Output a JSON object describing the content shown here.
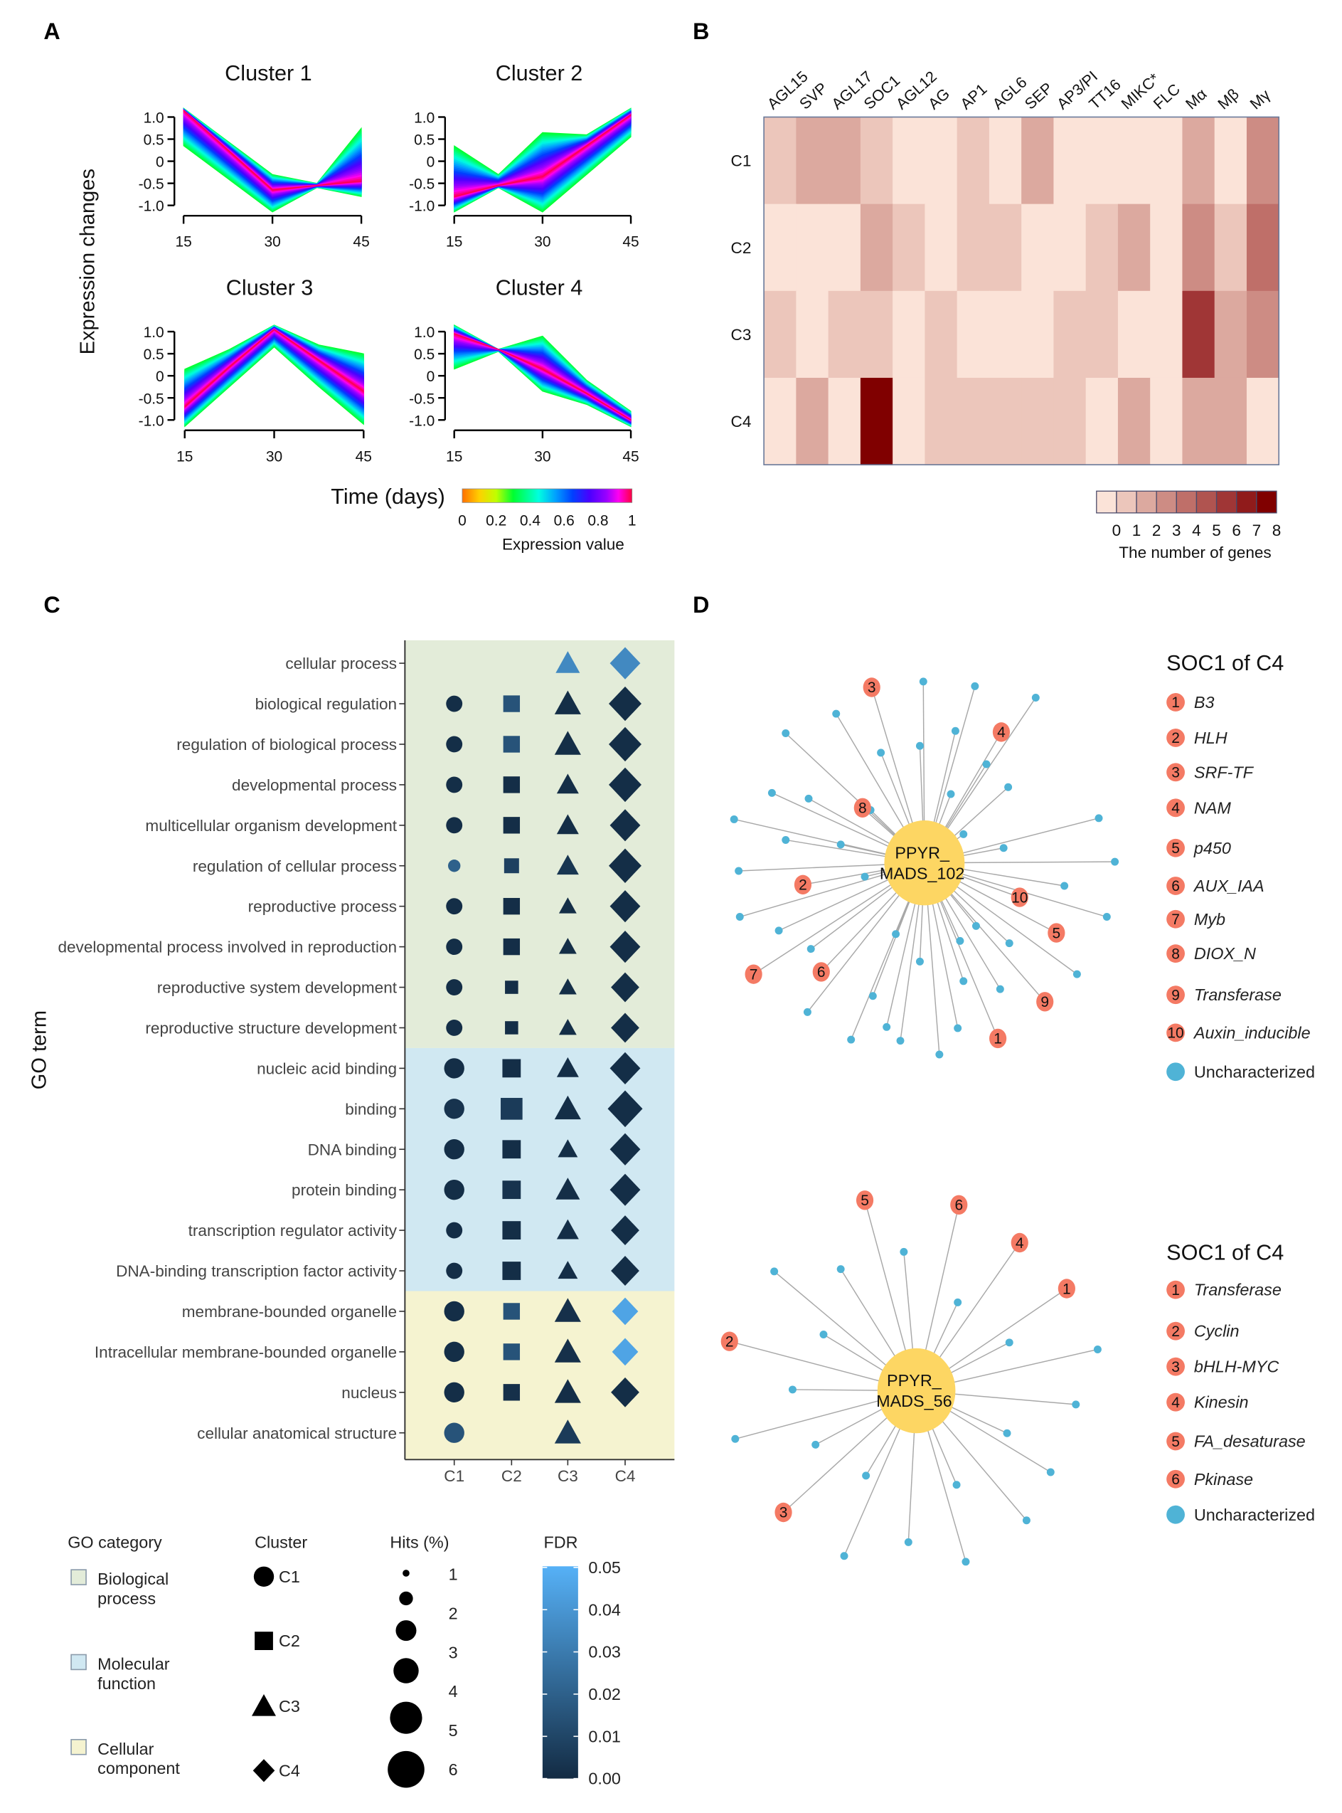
{
  "panels": {
    "a": "A",
    "b": "B",
    "c": "C",
    "d": "D"
  },
  "chart_data": [
    {
      "type": "line",
      "ylabel": "Expression changes",
      "xlabel": "Time (days)",
      "x": [
        15,
        22.5,
        30,
        37.5,
        45
      ],
      "xticks": [
        "15",
        "30",
        "45"
      ],
      "yticks": [
        "1.0",
        "0.5",
        "0",
        "-0.5",
        "-1.0"
      ],
      "ylim": [
        -1.0,
        1.0
      ],
      "clusters": [
        {
          "title": "Cluster 1",
          "core": [
            1.15,
            0.25,
            -0.65,
            -0.55,
            -0.45
          ],
          "upper": [
            1.2,
            0.45,
            -0.3,
            -0.5,
            0.75
          ],
          "lower": [
            0.35,
            -0.4,
            -1.15,
            -0.6,
            -0.8
          ]
        },
        {
          "title": "Cluster 2",
          "core": [
            -0.8,
            -0.55,
            -0.35,
            0.35,
            1.05
          ],
          "upper": [
            0.35,
            -0.3,
            0.65,
            0.6,
            1.2
          ],
          "lower": [
            -1.15,
            -0.6,
            -1.15,
            -0.3,
            0.55
          ]
        },
        {
          "title": "Cluster 3",
          "core": [
            -0.7,
            0.2,
            1.05,
            0.35,
            -0.35
          ],
          "upper": [
            0.15,
            0.6,
            1.15,
            0.7,
            0.5
          ],
          "lower": [
            -1.15,
            -0.25,
            0.65,
            -0.25,
            -1.1
          ]
        },
        {
          "title": "Cluster 4",
          "core": [
            0.95,
            0.6,
            0.15,
            -0.4,
            -1.0
          ],
          "upper": [
            1.15,
            0.6,
            0.9,
            -0.1,
            -0.8
          ],
          "lower": [
            0.15,
            0.55,
            -0.35,
            -0.65,
            -1.15
          ]
        }
      ],
      "colorbar": {
        "title": "Expression value",
        "ticks": [
          "0",
          "0.2",
          "0.4",
          "0.6",
          "0.8",
          "1"
        ]
      }
    },
    {
      "type": "heatmap",
      "columns": [
        "AGL15",
        "SVP",
        "AGL17",
        "SOC1",
        "AGL12",
        "AG",
        "AP1",
        "AGL6",
        "SEP",
        "AP3/PI",
        "TT16",
        "MIKC*",
        "FLC",
        "Mα",
        "Mβ",
        "Mγ"
      ],
      "rows": [
        "C1",
        "C2",
        "C3",
        "C4"
      ],
      "values": [
        [
          1,
          2,
          2,
          1,
          0,
          0,
          1,
          0,
          2,
          0,
          0,
          0,
          0,
          2,
          0,
          3
        ],
        [
          0,
          0,
          0,
          2,
          1,
          0,
          1,
          1,
          0,
          0,
          1,
          2,
          0,
          3,
          1,
          4
        ],
        [
          1,
          0,
          1,
          1,
          0,
          1,
          0,
          0,
          0,
          1,
          1,
          0,
          0,
          6,
          2,
          3
        ],
        [
          0,
          2,
          0,
          8,
          0,
          1,
          1,
          1,
          1,
          1,
          0,
          2,
          0,
          2,
          2,
          0
        ]
      ],
      "legend_title": "The number of genes",
      "legend_ticks": [
        "0",
        "1",
        "2",
        "3",
        "4",
        "5",
        "6",
        "7",
        "8"
      ],
      "colors": [
        "#fbe3d8",
        "#ecc6bb",
        "#dca99f",
        "#cd8c84",
        "#bf6f69",
        "#b05450",
        "#a03636",
        "#901b1b",
        "#800000"
      ]
    },
    {
      "type": "scatter",
      "ylabel": "GO term",
      "clusters": [
        "C1",
        "C2",
        "C3",
        "C4"
      ],
      "category_colors": {
        "BP": "#e3ecd9",
        "MF": "#d0e8f2",
        "CC": "#f5f3d0"
      },
      "fdr_range": [
        0,
        0.05
      ],
      "fdr_colors": [
        "#132b43",
        "#56b1f7"
      ],
      "terms": [
        {
          "label": "cellular process",
          "cat": "BP",
          "points": [
            null,
            null,
            {
              "hits": 4.5,
              "fdr": 0.035
            },
            {
              "hits": 5.5,
              "fdr": 0.035
            }
          ]
        },
        {
          "label": "biological regulation",
          "cat": "BP",
          "points": [
            {
              "hits": 3,
              "fdr": 0.001
            },
            {
              "hits": 3.5,
              "fdr": 0.015
            },
            {
              "hits": 5,
              "fdr": 0.001
            },
            {
              "hits": 6,
              "fdr": 0.001
            }
          ]
        },
        {
          "label": "regulation of biological process",
          "cat": "BP",
          "points": [
            {
              "hits": 3,
              "fdr": 0.001
            },
            {
              "hits": 3.5,
              "fdr": 0.015
            },
            {
              "hits": 5,
              "fdr": 0.001
            },
            {
              "hits": 6,
              "fdr": 0.001
            }
          ]
        },
        {
          "label": "developmental process",
          "cat": "BP",
          "points": [
            {
              "hits": 3,
              "fdr": 0.001
            },
            {
              "hits": 3.5,
              "fdr": 0.001
            },
            {
              "hits": 4,
              "fdr": 0.001
            },
            {
              "hits": 6,
              "fdr": 0.001
            }
          ]
        },
        {
          "label": "multicellular organism development",
          "cat": "BP",
          "points": [
            {
              "hits": 3,
              "fdr": 0.001
            },
            {
              "hits": 3.5,
              "fdr": 0.001
            },
            {
              "hits": 4,
              "fdr": 0.001
            },
            {
              "hits": 5.5,
              "fdr": 0.001
            }
          ]
        },
        {
          "label": "regulation of cellular process",
          "cat": "BP",
          "points": [
            {
              "hits": 2,
              "fdr": 0.02
            },
            {
              "hits": 3,
              "fdr": 0.008
            },
            {
              "hits": 4,
              "fdr": 0.004
            },
            {
              "hits": 6,
              "fdr": 0.001
            }
          ]
        },
        {
          "label": "reproductive process",
          "cat": "BP",
          "points": [
            {
              "hits": 3,
              "fdr": 0.001
            },
            {
              "hits": 3.5,
              "fdr": 0.001
            },
            {
              "hits": 3,
              "fdr": 0.001
            },
            {
              "hits": 5.5,
              "fdr": 0.001
            }
          ]
        },
        {
          "label": "developmental process involved in reproduction",
          "cat": "BP",
          "points": [
            {
              "hits": 3,
              "fdr": 0.001
            },
            {
              "hits": 3.5,
              "fdr": 0.001
            },
            {
              "hits": 3,
              "fdr": 0.001
            },
            {
              "hits": 5.5,
              "fdr": 0.001
            }
          ]
        },
        {
          "label": "reproductive system development",
          "cat": "BP",
          "points": [
            {
              "hits": 3,
              "fdr": 0.001
            },
            {
              "hits": 2.5,
              "fdr": 0.001
            },
            {
              "hits": 3,
              "fdr": 0.001
            },
            {
              "hits": 5,
              "fdr": 0.001
            }
          ]
        },
        {
          "label": "reproductive structure development",
          "cat": "BP",
          "points": [
            {
              "hits": 3,
              "fdr": 0.001
            },
            {
              "hits": 2.5,
              "fdr": 0.001
            },
            {
              "hits": 3,
              "fdr": 0.001
            },
            {
              "hits": 5,
              "fdr": 0.001
            }
          ]
        },
        {
          "label": "nucleic acid binding",
          "cat": "MF",
          "points": [
            {
              "hits": 4,
              "fdr": 0.001
            },
            {
              "hits": 4,
              "fdr": 0.001
            },
            {
              "hits": 4,
              "fdr": 0.001
            },
            {
              "hits": 5.5,
              "fdr": 0.001
            }
          ]
        },
        {
          "label": "binding",
          "cat": "MF",
          "points": [
            {
              "hits": 4,
              "fdr": 0.003
            },
            {
              "hits": 5,
              "fdr": 0.006
            },
            {
              "hits": 5,
              "fdr": 0.001
            },
            {
              "hits": 6.5,
              "fdr": 0.001
            }
          ]
        },
        {
          "label": "DNA binding",
          "cat": "MF",
          "points": [
            {
              "hits": 4,
              "fdr": 0.001
            },
            {
              "hits": 4,
              "fdr": 0.001
            },
            {
              "hits": 3.5,
              "fdr": 0.001
            },
            {
              "hits": 5.5,
              "fdr": 0.001
            }
          ]
        },
        {
          "label": "protein binding",
          "cat": "MF",
          "points": [
            {
              "hits": 4,
              "fdr": 0.001
            },
            {
              "hits": 4,
              "fdr": 0.003
            },
            {
              "hits": 4.5,
              "fdr": 0.001
            },
            {
              "hits": 5.5,
              "fdr": 0.001
            }
          ]
        },
        {
          "label": "transcription regulator activity",
          "cat": "MF",
          "points": [
            {
              "hits": 3,
              "fdr": 0.001
            },
            {
              "hits": 4,
              "fdr": 0.001
            },
            {
              "hits": 4,
              "fdr": 0.001
            },
            {
              "hits": 5,
              "fdr": 0.001
            }
          ]
        },
        {
          "label": "DNA-binding transcription factor activity",
          "cat": "MF",
          "points": [
            {
              "hits": 3,
              "fdr": 0.001
            },
            {
              "hits": 4,
              "fdr": 0.001
            },
            {
              "hits": 3.5,
              "fdr": 0.001
            },
            {
              "hits": 5,
              "fdr": 0.001
            }
          ]
        },
        {
          "label": "membrane-bounded organelle",
          "cat": "CC",
          "points": [
            {
              "hits": 4,
              "fdr": 0.001
            },
            {
              "hits": 3.5,
              "fdr": 0.015
            },
            {
              "hits": 5,
              "fdr": 0.002
            },
            {
              "hits": 4.5,
              "fdr": 0.045
            }
          ]
        },
        {
          "label": "Intracellular membrane-bounded organelle",
          "cat": "CC",
          "points": [
            {
              "hits": 4,
              "fdr": 0.001
            },
            {
              "hits": 3.5,
              "fdr": 0.015
            },
            {
              "hits": 5,
              "fdr": 0.002
            },
            {
              "hits": 4.5,
              "fdr": 0.045
            }
          ]
        },
        {
          "label": "nucleus",
          "cat": "CC",
          "points": [
            {
              "hits": 4,
              "fdr": 0.001
            },
            {
              "hits": 3.5,
              "fdr": 0.002
            },
            {
              "hits": 5,
              "fdr": 0.001
            },
            {
              "hits": 5,
              "fdr": 0.001
            }
          ]
        },
        {
          "label": "cellular anatomical structure",
          "cat": "CC",
          "points": [
            {
              "hits": 4,
              "fdr": 0.015
            },
            null,
            {
              "hits": 5,
              "fdr": 0.006
            },
            null
          ]
        }
      ],
      "legend": {
        "category_title": "GO category",
        "categories": [
          [
            "Biological",
            "process"
          ],
          [
            "Molecular",
            "function"
          ],
          [
            "Cellular",
            "component"
          ]
        ],
        "cluster_title": "Cluster",
        "hits_title": "Hits (%)",
        "hits_ticks": [
          "1",
          "2",
          "3",
          "4",
          "5",
          "6"
        ],
        "fdr_title": "FDR",
        "fdr_ticks": [
          "0.05",
          "0.04",
          "0.03",
          "0.02",
          "0.01",
          "0.00"
        ]
      }
    },
    {
      "type": "network",
      "networks": [
        {
          "title": "SOC1 of C4",
          "hub": [
            "PPYR_",
            "MADS_102"
          ],
          "annotated": [
            "B3",
            "HLH",
            "SRF-TF",
            "NAM",
            "p450",
            "AUX_IAA",
            "Myb",
            "DIOX_N",
            "Transferase",
            "Auxin_inducible"
          ],
          "uncharacterized_label": "Uncharacterized"
        },
        {
          "title": "SOC1 of C4",
          "hub": [
            "PPYR_",
            "MADS_56"
          ],
          "annotated": [
            "Transferase",
            "Cyclin",
            "bHLH-MYC",
            "Kinesin",
            "FA_desaturase",
            "Pkinase"
          ],
          "uncharacterized_label": "Uncharacterized"
        }
      ],
      "colors": {
        "hub": "#fdd663",
        "annotated": "#f47a64",
        "uncharacterized": "#4fb3d6",
        "edge": "#a8a8a8"
      }
    }
  ]
}
